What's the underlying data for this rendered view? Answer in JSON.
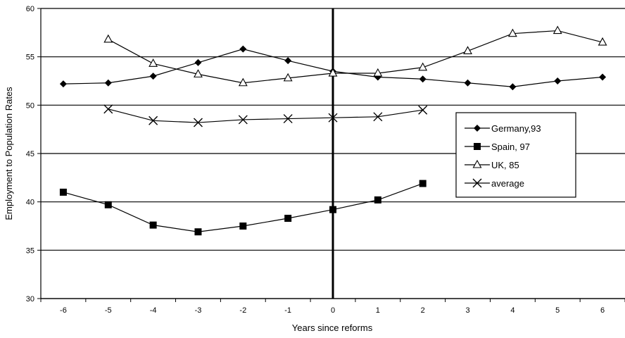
{
  "chart_data": {
    "type": "line",
    "title": "",
    "xlabel": "Years since reforms",
    "ylabel": "Employment to Population Rates",
    "categories": [
      "-6",
      "-5",
      "-4",
      "-3",
      "-2",
      "-1",
      "0",
      "1",
      "2",
      "3",
      "4",
      "5",
      "6"
    ],
    "ylim": [
      30,
      60
    ],
    "yticks": [
      "30",
      "35",
      "40",
      "45",
      "50",
      "55",
      "60"
    ],
    "grid": "horizontal",
    "reference_line_at": "0",
    "legend_position": "right",
    "series": [
      {
        "name": "Germany,93",
        "marker": "diamond",
        "color": "#000000",
        "values": [
          52.2,
          52.3,
          53.0,
          54.4,
          55.8,
          54.6,
          53.5,
          52.9,
          52.7,
          52.3,
          51.9,
          52.5,
          52.9
        ]
      },
      {
        "name": "Spain, 97",
        "marker": "square",
        "color": "#000000",
        "values": [
          41.0,
          39.7,
          37.6,
          36.9,
          37.5,
          38.3,
          39.2,
          40.2,
          41.9,
          null,
          null,
          null,
          null
        ]
      },
      {
        "name": "UK, 85",
        "marker": "triangle",
        "color": "#000000",
        "values": [
          null,
          56.8,
          54.3,
          53.2,
          52.3,
          52.8,
          53.3,
          53.3,
          53.9,
          55.6,
          57.4,
          57.7,
          56.5
        ]
      },
      {
        "name": "average",
        "marker": "x",
        "color": "#000000",
        "values": [
          null,
          49.6,
          48.4,
          48.2,
          48.5,
          48.6,
          48.7,
          48.8,
          49.5,
          null,
          null,
          null,
          null
        ]
      }
    ]
  }
}
